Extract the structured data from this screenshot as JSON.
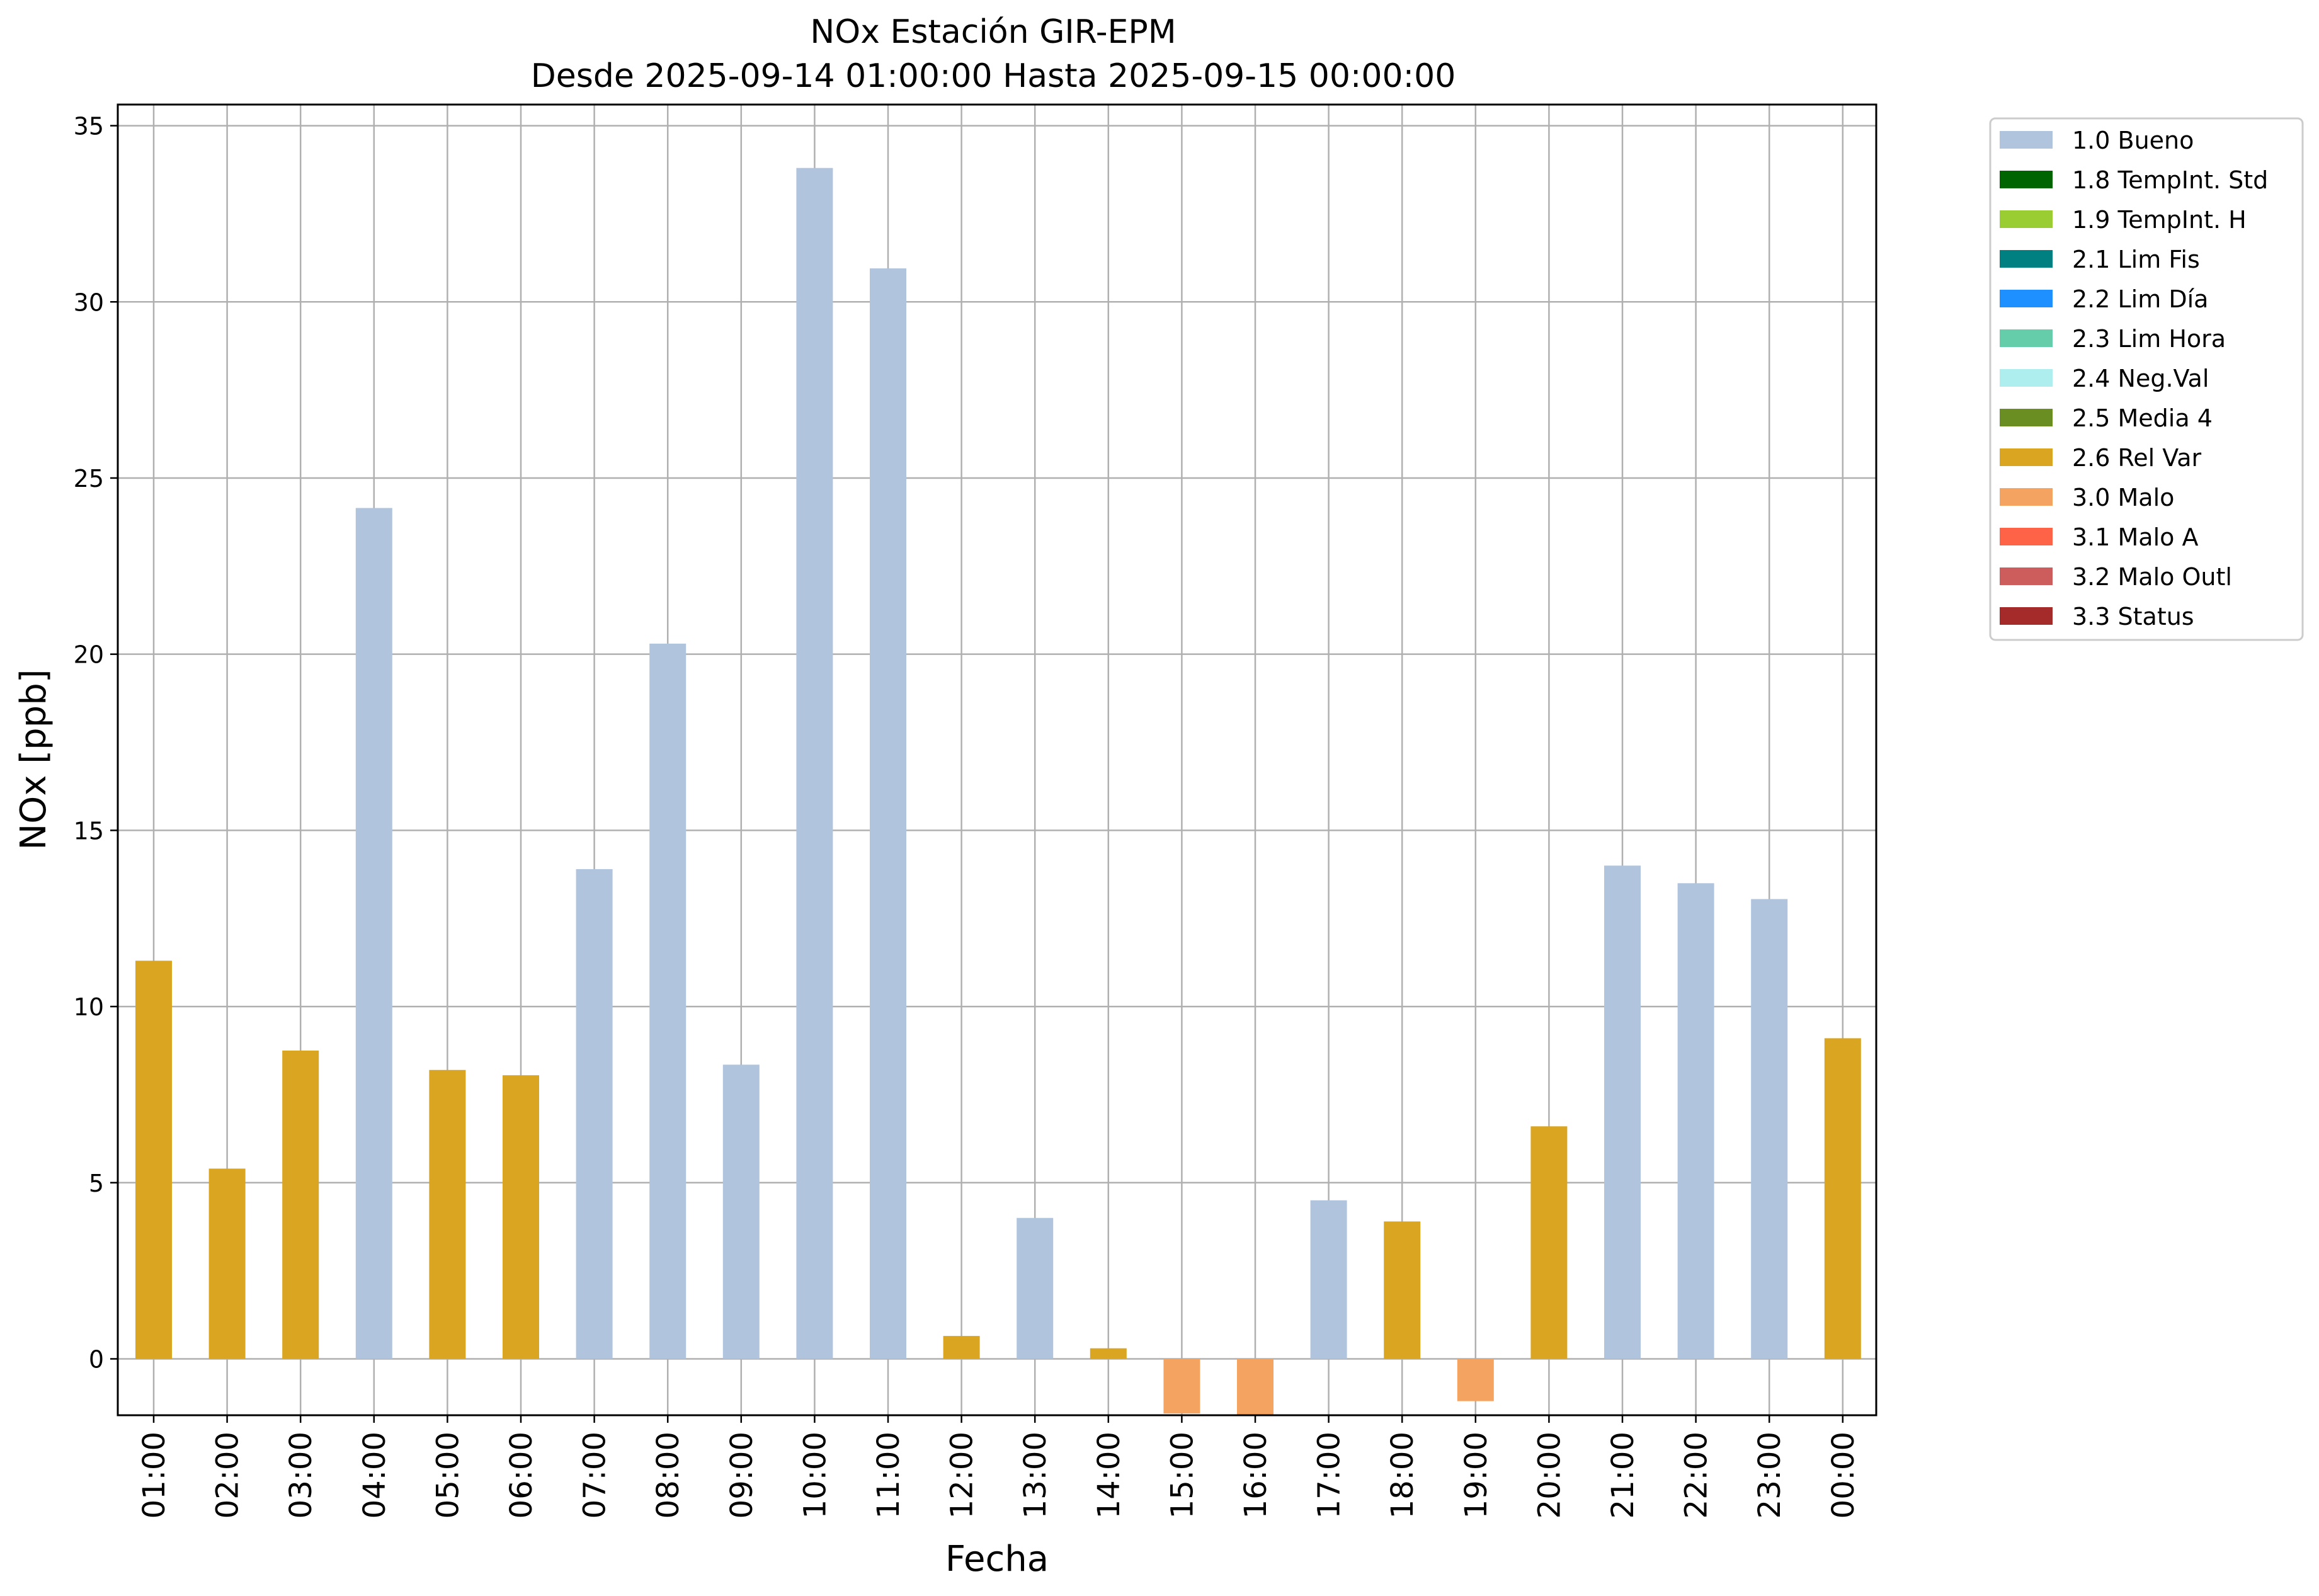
{
  "chart_data": {
    "type": "bar",
    "title": "NOx Estación GIR-EPM",
    "subtitle": "Desde 2025-09-14 01:00:00 Hasta 2025-09-15 00:00:00",
    "xlabel": "Fecha",
    "ylabel": "NOx [ppb]",
    "ylim": [
      -1.6,
      35.6
    ],
    "yticks": [
      0,
      5,
      10,
      15,
      20,
      25,
      30,
      35
    ],
    "grid": true,
    "legend_position": "outside-right",
    "categories": [
      "01:00",
      "02:00",
      "03:00",
      "04:00",
      "05:00",
      "06:00",
      "07:00",
      "08:00",
      "09:00",
      "10:00",
      "11:00",
      "12:00",
      "13:00",
      "14:00",
      "15:00",
      "16:00",
      "17:00",
      "18:00",
      "19:00",
      "20:00",
      "21:00",
      "22:00",
      "23:00",
      "00:00"
    ],
    "values": [
      11.3,
      5.4,
      8.75,
      24.15,
      8.2,
      8.05,
      13.9,
      20.3,
      8.35,
      33.8,
      30.95,
      0.65,
      4.0,
      0.3,
      -1.55,
      -1.6,
      4.5,
      3.9,
      -1.2,
      6.6,
      14.0,
      13.5,
      13.05,
      9.1
    ],
    "flags": [
      "2.6 Rel Var",
      "2.6 Rel Var",
      "2.6 Rel Var",
      "1.0 Bueno",
      "2.6 Rel Var",
      "2.6 Rel Var",
      "1.0 Bueno",
      "1.0 Bueno",
      "1.0 Bueno",
      "1.0 Bueno",
      "1.0 Bueno",
      "2.6 Rel Var",
      "1.0 Bueno",
      "2.6 Rel Var",
      "3.0 Malo",
      "3.0 Malo",
      "1.0 Bueno",
      "2.6 Rel Var",
      "3.0 Malo",
      "2.6 Rel Var",
      "1.0 Bueno",
      "1.0 Bueno",
      "1.0 Bueno",
      "2.6 Rel Var"
    ],
    "legend": [
      {
        "name": "1.0 Bueno",
        "color": "#b0c4de"
      },
      {
        "name": "1.8 TempInt. Std",
        "color": "#006400"
      },
      {
        "name": "1.9 TempInt. H",
        "color": "#9acd32"
      },
      {
        "name": "2.1 Lim Fis",
        "color": "#008080"
      },
      {
        "name": "2.2 Lim Día",
        "color": "#1e90ff"
      },
      {
        "name": "2.3 Lim Hora",
        "color": "#66cdaa"
      },
      {
        "name": "2.4 Neg.Val",
        "color": "#afeeee"
      },
      {
        "name": "2.5 Media 4",
        "color": "#6b8e23"
      },
      {
        "name": "2.6 Rel Var",
        "color": "#daa520"
      },
      {
        "name": "3.0 Malo",
        "color": "#f4a460"
      },
      {
        "name": "3.1 Malo A",
        "color": "#ff6347"
      },
      {
        "name": "3.2 Malo Outl",
        "color": "#cd5c5c"
      },
      {
        "name": "3.3 Status",
        "color": "#a52a2a"
      }
    ]
  }
}
